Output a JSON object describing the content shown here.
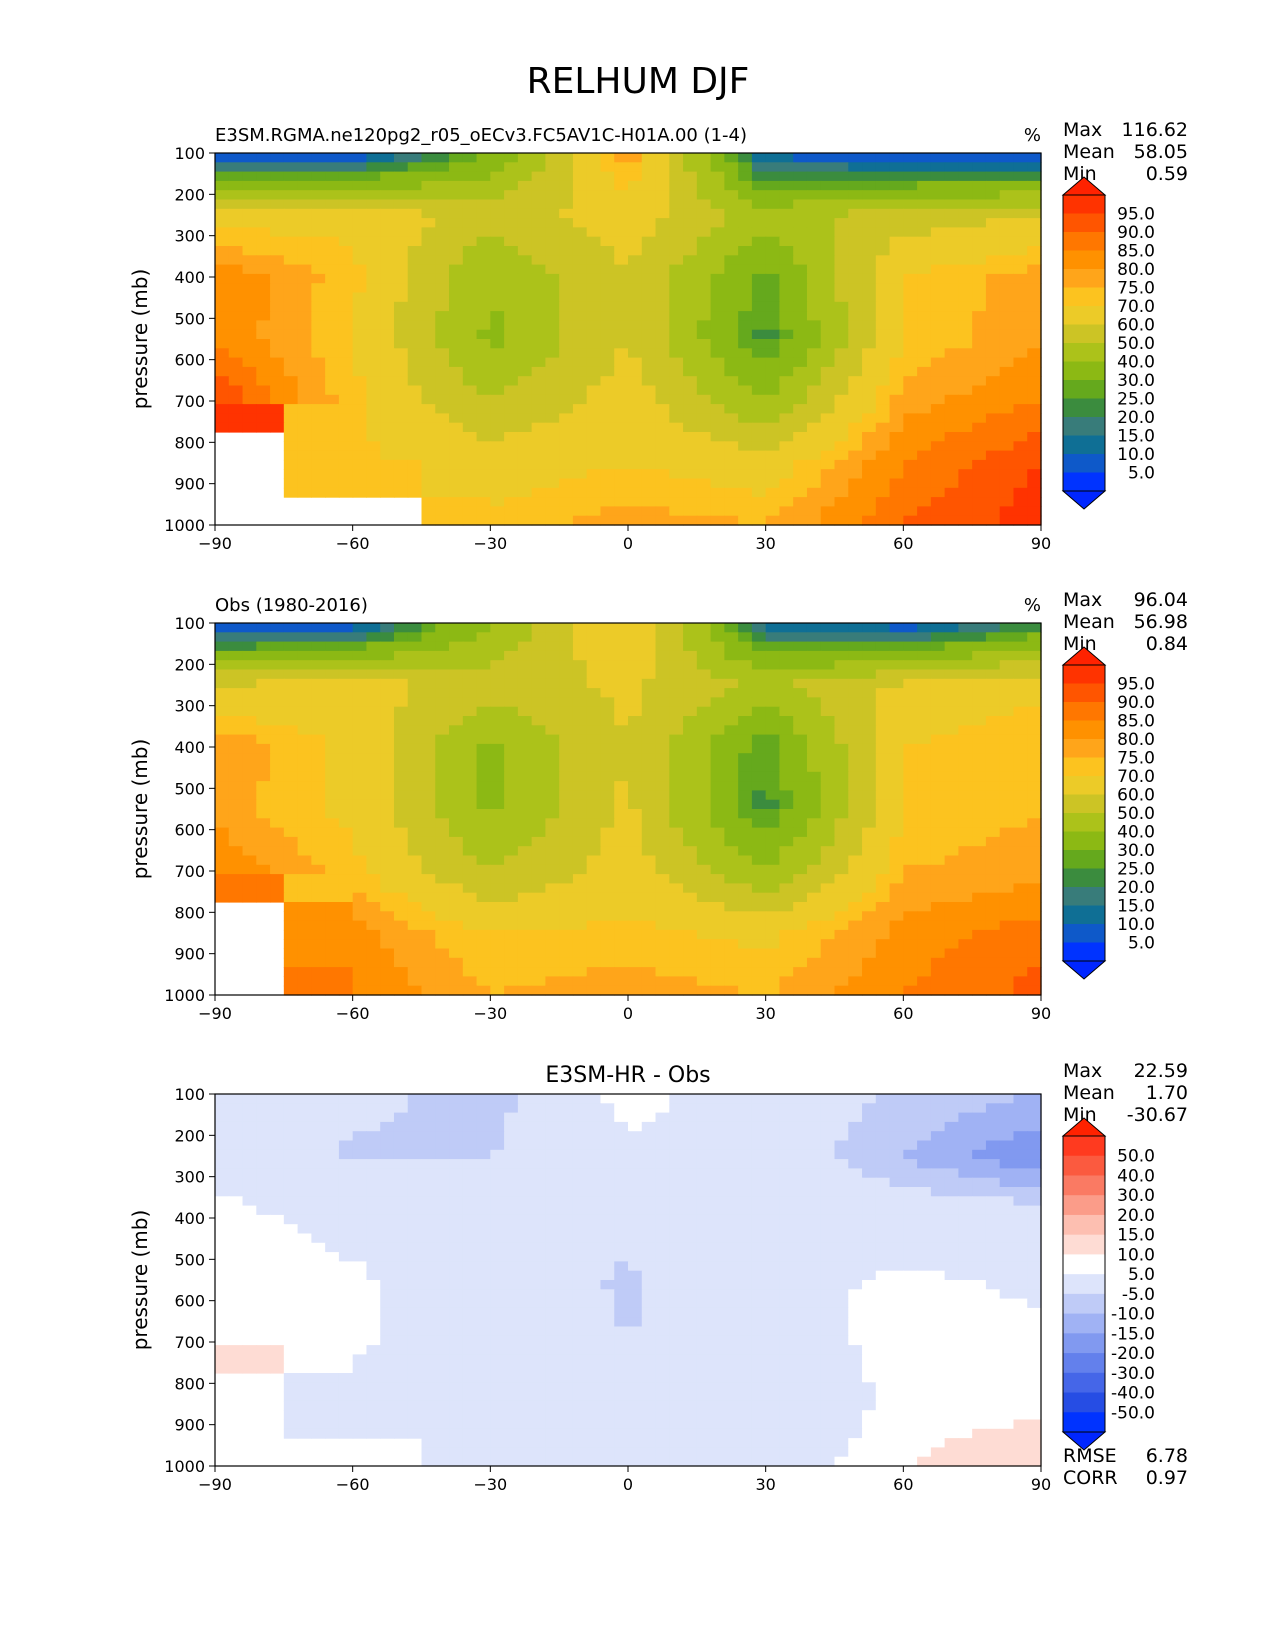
{
  "figure": {
    "title": "RELHUM DJF"
  },
  "colorbar_abs": {
    "labels": [
      "95.0",
      "90.0",
      "85.0",
      "80.0",
      "75.0",
      "70.0",
      "60.0",
      "50.0",
      "40.0",
      "30.0",
      "25.0",
      "20.0",
      "15.0",
      "10.0",
      "5.0"
    ],
    "colors": [
      "#ff3300",
      "#ff5500",
      "#ff7700",
      "#ff9100",
      "#ffa51a",
      "#fcc31f",
      "#eccb28",
      "#ccc425",
      "#acc21a",
      "#8cb914",
      "#65a91d",
      "#3b8c3e",
      "#387c7a",
      "#0f6f95",
      "#0e59c9",
      "#0033ff"
    ],
    "max_color": "#ff2200",
    "min_color": "#0026ff"
  },
  "colorbar_diff": {
    "labels": [
      "50.0",
      "40.0",
      "30.0",
      "20.0",
      "15.0",
      "10.0",
      "5.0",
      "-5.0",
      "-10.0",
      "-15.0",
      "-20.0",
      "-30.0",
      "-40.0",
      "-50.0"
    ],
    "colors": [
      "#ff3a1f",
      "#fb5a3f",
      "#fa7a63",
      "#fb9c89",
      "#fdbfb1",
      "#fedcd4",
      "#ffffff",
      "#dde4fb",
      "#bfcbf7",
      "#a0b2f4",
      "#8199f0",
      "#6380ec",
      "#4566e8",
      "#264de4",
      "#0033ff"
    ],
    "max_color": "#ff2200",
    "min_color": "#0026ff"
  },
  "chart_data": [
    {
      "type": "heatmap",
      "title_left": "E3SM.RGMA.ne120pg2_r05_oECv3.FC5AV1C-H01A.00 (1-4)",
      "units": "%",
      "xlabel": "",
      "ylabel": "pressure (mb)",
      "x_ticks": [
        "−90",
        "−60",
        "−30",
        "0",
        "30",
        "60",
        "90"
      ],
      "y_ticks": [
        "100",
        "200",
        "300",
        "400",
        "500",
        "600",
        "700",
        "800",
        "900",
        "1000"
      ],
      "xlim": [
        -90,
        90
      ],
      "ylim": [
        1000,
        100
      ],
      "stats": {
        "max_label": "Max",
        "max": "116.62",
        "mean_label": "Mean",
        "mean": "58.05",
        "min_label": "Min",
        "min": "0.59"
      },
      "grid_lat": [
        -90,
        -60,
        -30,
        0,
        30,
        60,
        90
      ],
      "grid_p": [
        100,
        250,
        400,
        550,
        700,
        850,
        1000
      ],
      "values": [
        [
          1,
          3,
          30,
          80,
          8,
          2,
          1
        ],
        [
          65,
          68,
          55,
          65,
          45,
          55,
          60
        ],
        [
          85,
          72,
          40,
          60,
          28,
          70,
          78
        ],
        [
          85,
          70,
          38,
          60,
          22,
          70,
          80
        ],
        [
          95,
          72,
          50,
          65,
          40,
          78,
          85
        ],
        [
          null,
          72,
          65,
          70,
          65,
          85,
          95
        ],
        [
          null,
          null,
          72,
          78,
          75,
          90,
          98
        ]
      ]
    },
    {
      "type": "heatmap",
      "title_left": "Obs (1980-2016)",
      "units": "%",
      "xlabel": "",
      "ylabel": "pressure (mb)",
      "x_ticks": [
        "−90",
        "−60",
        "−30",
        "0",
        "30",
        "60",
        "90"
      ],
      "y_ticks": [
        "100",
        "200",
        "300",
        "400",
        "500",
        "600",
        "700",
        "800",
        "900",
        "1000"
      ],
      "xlim": [
        -90,
        90
      ],
      "ylim": [
        1000,
        100
      ],
      "stats": {
        "max_label": "Max",
        "max": "96.04",
        "mean_label": "Mean",
        "mean": "56.98",
        "min_label": "Min",
        "min": "0.84"
      },
      "grid_lat": [
        -90,
        -60,
        -30,
        0,
        30,
        60,
        90
      ],
      "grid_p": [
        100,
        250,
        400,
        550,
        700,
        850,
        1000
      ],
      "values": [
        [
          2,
          5,
          40,
          72,
          12,
          5,
          20
        ],
        [
          60,
          65,
          55,
          62,
          48,
          62,
          68
        ],
        [
          80,
          68,
          38,
          60,
          25,
          70,
          75
        ],
        [
          78,
          68,
          38,
          62,
          22,
          70,
          75
        ],
        [
          85,
          72,
          50,
          65,
          40,
          75,
          78
        ],
        [
          null,
          82,
          70,
          72,
          68,
          82,
          88
        ],
        [
          null,
          85,
          75,
          78,
          75,
          85,
          92
        ]
      ]
    },
    {
      "type": "heatmap",
      "title_center": "E3SM-HR - Obs",
      "units": "",
      "xlabel": "",
      "ylabel": "pressure (mb)",
      "x_ticks": [
        "−90",
        "−60",
        "−30",
        "0",
        "30",
        "60",
        "90"
      ],
      "y_ticks": [
        "100",
        "200",
        "300",
        "400",
        "500",
        "600",
        "700",
        "800",
        "900",
        "1000"
      ],
      "xlim": [
        -90,
        90
      ],
      "ylim": [
        1000,
        100
      ],
      "stats": {
        "max_label": "Max",
        "max": "22.59",
        "mean_label": "Mean",
        "mean": "1.70",
        "min_label": "Min",
        "min": "-30.67",
        "rmse_label": "RMSE",
        "rmse": "6.78",
        "corr_label": "CORR",
        "corr": "0.97"
      },
      "grid_lat": [
        -90,
        -60,
        -30,
        0,
        30,
        60,
        90
      ],
      "grid_p": [
        100,
        250,
        400,
        550,
        700,
        850,
        1000
      ],
      "values": [
        [
          0,
          -3,
          -8,
          8,
          0,
          -6,
          -10
        ],
        [
          3,
          -6,
          -5,
          3,
          0,
          -10,
          -20
        ],
        [
          7,
          3,
          0,
          -3,
          3,
          0,
          0
        ],
        [
          7,
          6,
          0,
          -6,
          3,
          6,
          4
        ],
        [
          10,
          6,
          0,
          -5,
          0,
          8,
          6
        ],
        [
          null,
          3,
          0,
          -5,
          -3,
          7,
          9
        ],
        [
          null,
          null,
          0,
          3,
          0,
          10,
          14
        ]
      ]
    }
  ]
}
